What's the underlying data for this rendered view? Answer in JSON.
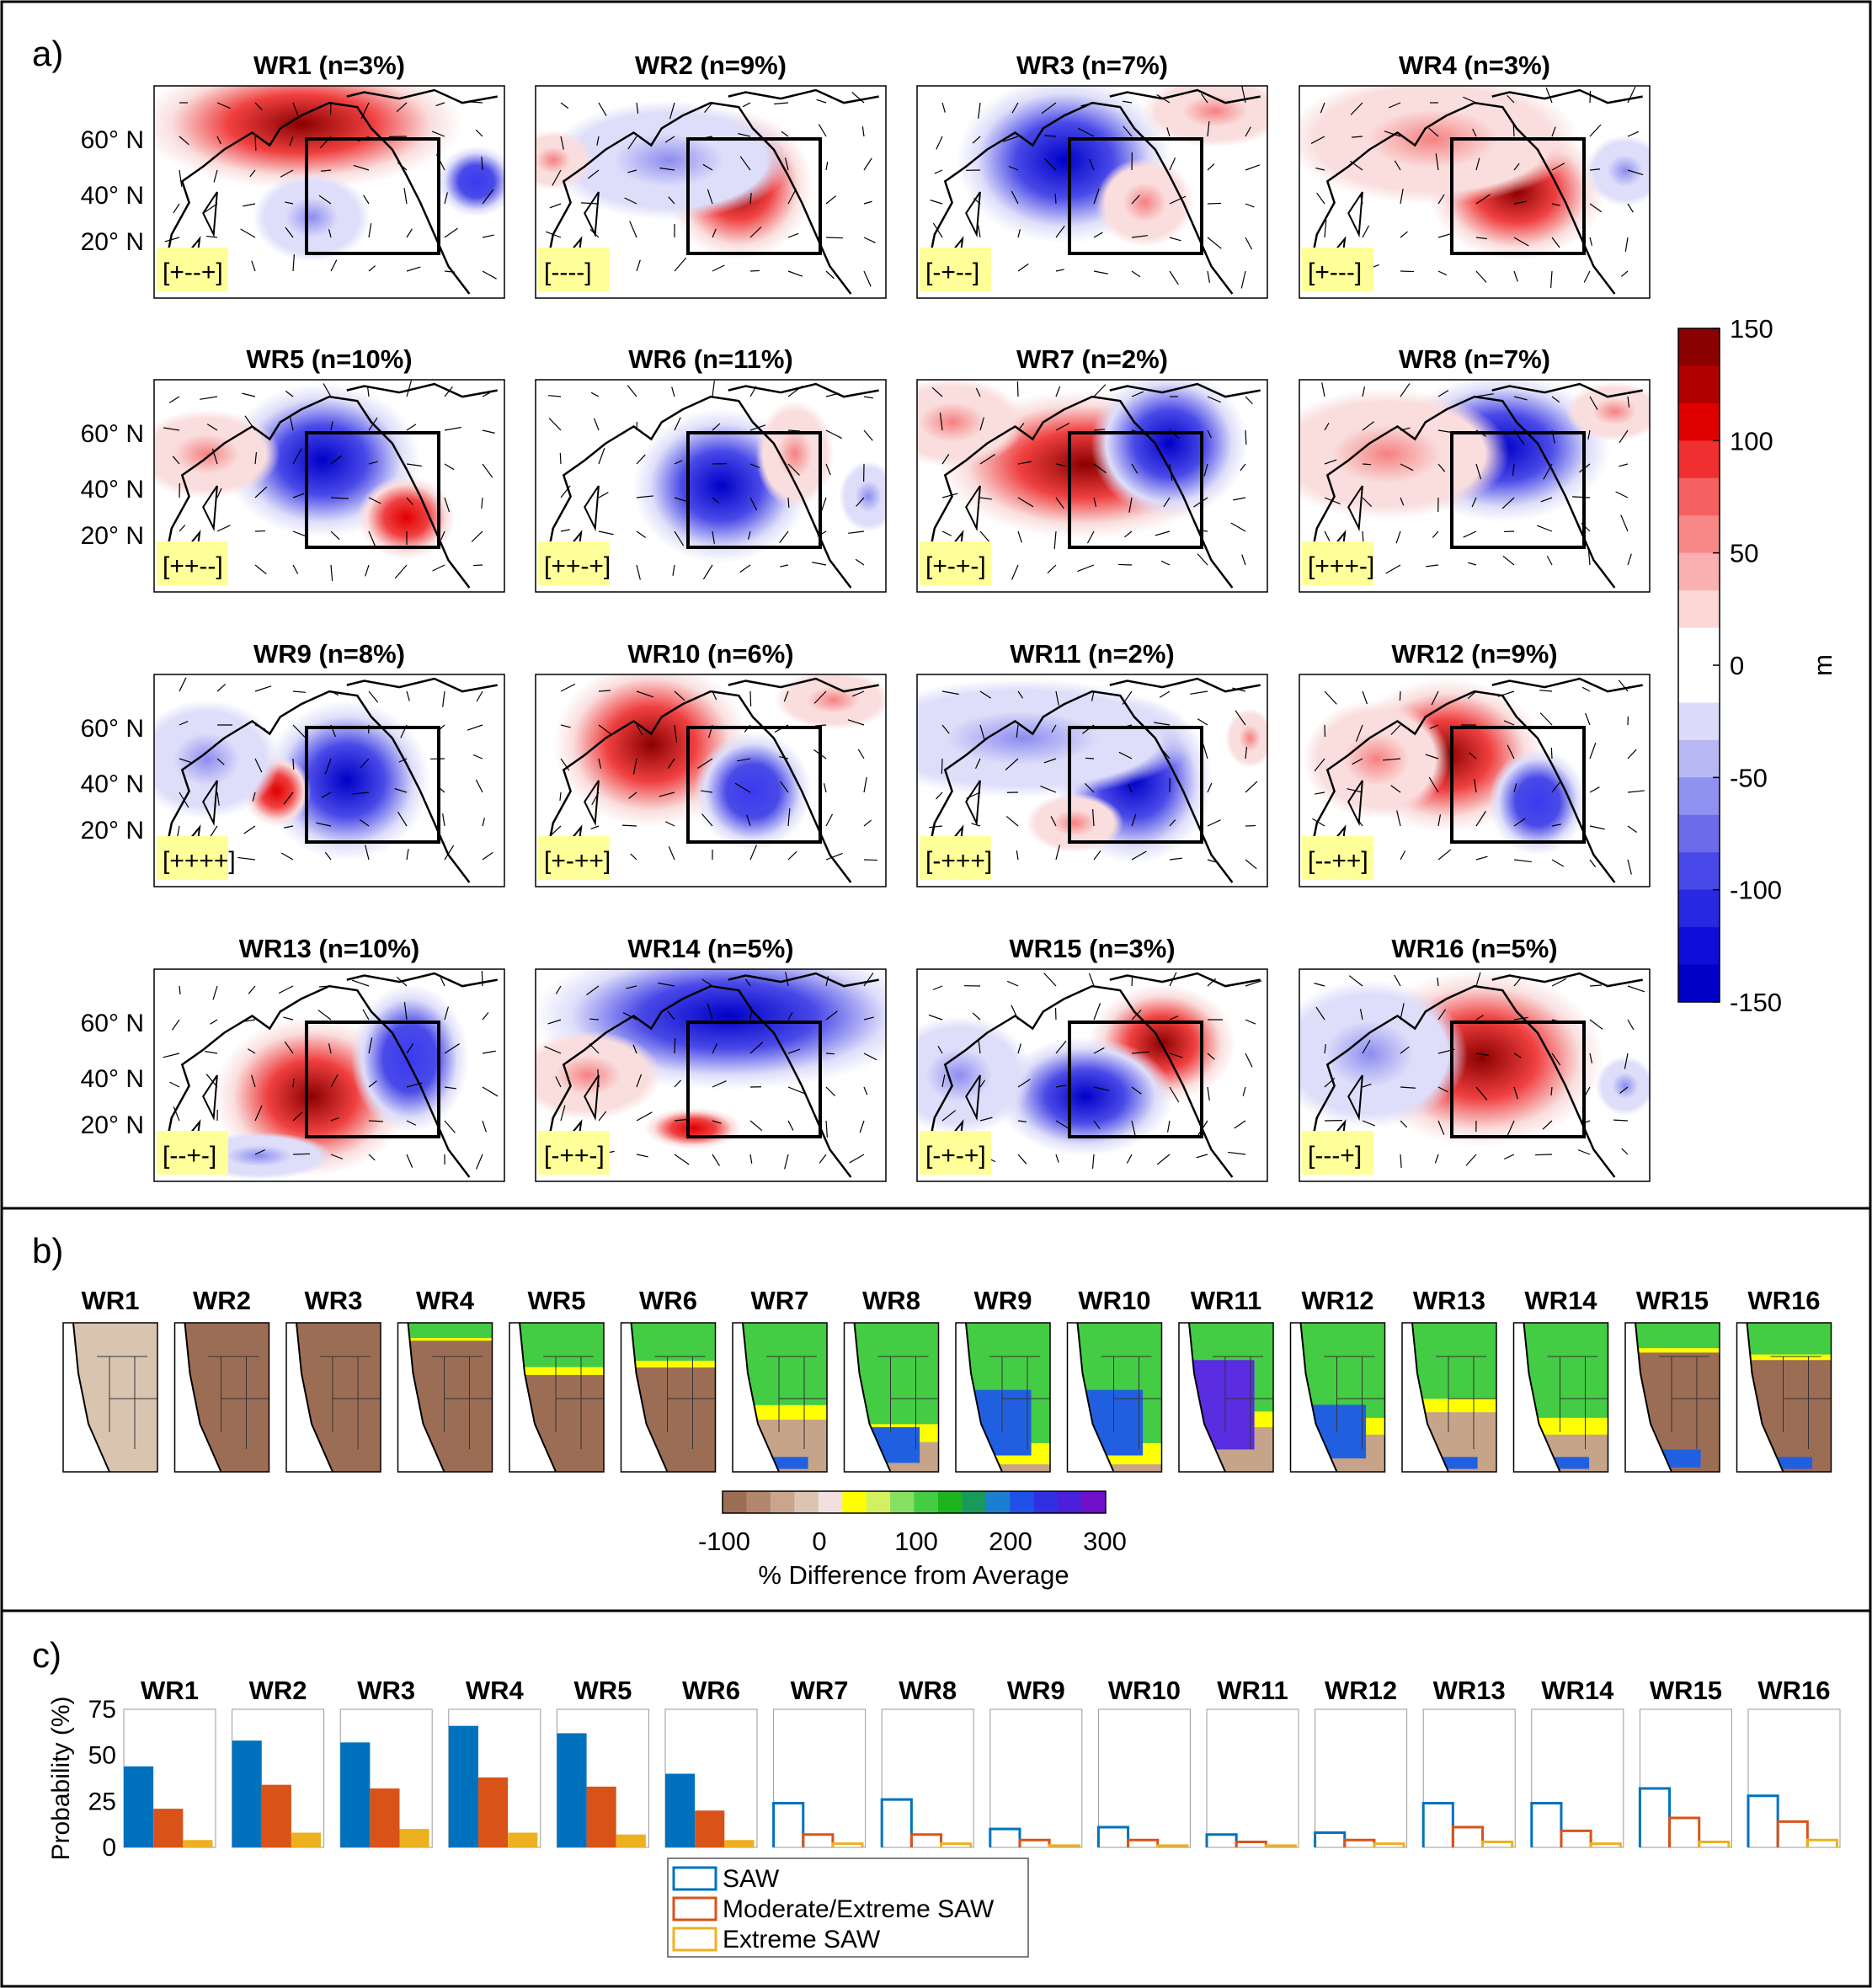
{
  "panel_a": {
    "label": "a)",
    "titles": [
      "WR1 (n=3%)",
      "WR2 (n=9%)",
      "WR3 (n=7%)",
      "WR4 (n=3%)",
      "WR5 (n=10%)",
      "WR6 (n=11%)",
      "WR7 (n=2%)",
      "WR8 (n=7%)",
      "WR9 (n=8%)",
      "WR10 (n=6%)",
      "WR11 (n=2%)",
      "WR12 (n=9%)",
      "WR13 (n=10%)",
      "WR14 (n=5%)",
      "WR15 (n=3%)",
      "WR16 (n=5%)"
    ],
    "codes": [
      "[+--+]",
      "[----]",
      "[-+--]",
      "[+---]",
      "[++--]",
      "[++-+]",
      "[+-+-]",
      "[+++-]",
      "[++++]",
      "[+-++]",
      "[-+++]",
      "[--++]",
      "[--+-]",
      "[-++-]",
      "[-+-+]",
      "[---+]"
    ],
    "lat_labels": [
      "60° N",
      "40° N",
      "20° N"
    ],
    "colorbar": {
      "ticks": [
        "150",
        "100",
        "50",
        "0",
        "-50",
        "-100",
        "-150"
      ],
      "unit": "m"
    }
  },
  "panel_b": {
    "label": "b)",
    "titles": [
      "WR1",
      "WR2",
      "WR3",
      "WR4",
      "WR5",
      "WR6",
      "WR7",
      "WR8",
      "WR9",
      "WR10",
      "WR11",
      "WR12",
      "WR13",
      "WR14",
      "WR15",
      "WR16"
    ],
    "colorbar": {
      "ticks": [
        "-100",
        "0",
        "100",
        "200",
        "300"
      ],
      "label": "% Difference from Average"
    }
  },
  "panel_c": {
    "label": "c)",
    "titles": [
      "WR1",
      "WR2",
      "WR3",
      "WR4",
      "WR5",
      "WR6",
      "WR7",
      "WR8",
      "WR9",
      "WR10",
      "WR11",
      "WR12",
      "WR13",
      "WR14",
      "WR15",
      "WR16"
    ],
    "ylabel": "Probability (%)",
    "yticks": [
      "75",
      "50",
      "25",
      "0"
    ],
    "legend": [
      "SAW",
      "Moderate/Extreme SAW",
      "Extreme SAW"
    ]
  },
  "chart_data": [
    {
      "type": "heatmap",
      "description_source": "panel a",
      "variable_unit": "m",
      "colorbar_range": [
        -150,
        150
      ],
      "regimes": [
        {
          "name": "WR1",
          "frequency_pct": 3,
          "code": "[+--+]"
        },
        {
          "name": "WR2",
          "frequency_pct": 9,
          "code": "[----]"
        },
        {
          "name": "WR3",
          "frequency_pct": 7,
          "code": "[-+--]"
        },
        {
          "name": "WR4",
          "frequency_pct": 3,
          "code": "[+---]"
        },
        {
          "name": "WR5",
          "frequency_pct": 10,
          "code": "[++--]"
        },
        {
          "name": "WR6",
          "frequency_pct": 11,
          "code": "[++-+]"
        },
        {
          "name": "WR7",
          "frequency_pct": 2,
          "code": "[+-+-]"
        },
        {
          "name": "WR8",
          "frequency_pct": 7,
          "code": "[+++-]"
        },
        {
          "name": "WR9",
          "frequency_pct": 8,
          "code": "[++++]"
        },
        {
          "name": "WR10",
          "frequency_pct": 6,
          "code": "[+-++]"
        },
        {
          "name": "WR11",
          "frequency_pct": 2,
          "code": "[-+++]"
        },
        {
          "name": "WR12",
          "frequency_pct": 9,
          "code": "[--++]"
        },
        {
          "name": "WR13",
          "frequency_pct": 10,
          "code": "[--+-]"
        },
        {
          "name": "WR14",
          "frequency_pct": 5,
          "code": "[-++-]"
        },
        {
          "name": "WR15",
          "frequency_pct": 3,
          "code": "[-+-+]"
        },
        {
          "name": "WR16",
          "frequency_pct": 5,
          "code": "[---+]"
        }
      ]
    },
    {
      "type": "heatmap",
      "description_source": "panel b",
      "colorbar_label": "% Difference from Average",
      "colorbar_range": [
        -100,
        300
      ],
      "categories": [
        "WR1",
        "WR2",
        "WR3",
        "WR4",
        "WR5",
        "WR6",
        "WR7",
        "WR8",
        "WR9",
        "WR10",
        "WR11",
        "WR12",
        "WR13",
        "WR14",
        "WR15",
        "WR16"
      ]
    },
    {
      "type": "bar",
      "description_source": "panel c",
      "categories": [
        "WR1",
        "WR2",
        "WR3",
        "WR4",
        "WR5",
        "WR6",
        "WR7",
        "WR8",
        "WR9",
        "WR10",
        "WR11",
        "WR12",
        "WR13",
        "WR14",
        "WR15",
        "WR16"
      ],
      "ylabel": "Probability (%)",
      "ylim": [
        0,
        75
      ],
      "series": [
        {
          "name": "SAW",
          "color": "#0072BD",
          "values": [
            44,
            58,
            57,
            66,
            62,
            40,
            24,
            26,
            10,
            11,
            7,
            8,
            24,
            24,
            32,
            28
          ]
        },
        {
          "name": "Moderate/Extreme SAW",
          "color": "#D95319",
          "values": [
            21,
            34,
            32,
            38,
            33,
            20,
            7,
            7,
            4,
            4,
            3,
            4,
            11,
            9,
            16,
            14
          ]
        },
        {
          "name": "Extreme SAW",
          "color": "#EDB120",
          "values": [
            4,
            8,
            10,
            8,
            7,
            4,
            2,
            2,
            1,
            1,
            1,
            2,
            3,
            2,
            3,
            4
          ]
        }
      ],
      "filled_for": [
        "WR1",
        "WR2",
        "WR3",
        "WR4",
        "WR5",
        "WR6"
      ],
      "legend_position": "bottom-center"
    }
  ]
}
